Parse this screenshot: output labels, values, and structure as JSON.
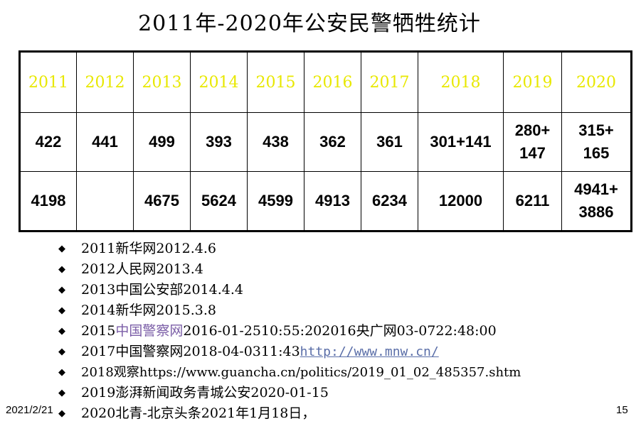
{
  "title": "2011年-2020年公安民警牺牲统计",
  "table": {
    "years": [
      "2011",
      "2012",
      "2013",
      "2014",
      "2015",
      "2016",
      "2017",
      "2018",
      "2019",
      "2020"
    ],
    "row_a": [
      "422",
      "441",
      "499",
      "393",
      "438",
      "362",
      "361",
      "301+141",
      "280+\n147",
      "315+\n165"
    ],
    "row_b": [
      "4198",
      "",
      "4675",
      "5624",
      "4599",
      "4913",
      "6234",
      "12000",
      "6211",
      "4941+\n3886"
    ]
  },
  "sources": [
    {
      "text": "2011新华网2012.4.6"
    },
    {
      "text": "2012人民网2013.4"
    },
    {
      "text": "2013中国公安部2014.4.4"
    },
    {
      "text": "2014新华网2015.3.8"
    },
    {
      "pre": "2015",
      "link": "中国警察网",
      "post": "2016-01-2510:55:202016央广网03-0722:48:00"
    },
    {
      "pre": "2017中国警察网2018-04-0311:43",
      "link": "http://www.mnw.cn/",
      "post": ""
    },
    {
      "text": "2018观察https://www.guancha.cn/politics/2019_01_02_485357.shtm"
    },
    {
      "text": "2019澎湃新闻政务青城公安2020-01-15"
    },
    {
      "text": "2020北青-北京头条2021年1月18日，"
    }
  ],
  "bullet_glyph": "◆",
  "footer": {
    "date": "2021/2/21",
    "page": "15"
  }
}
